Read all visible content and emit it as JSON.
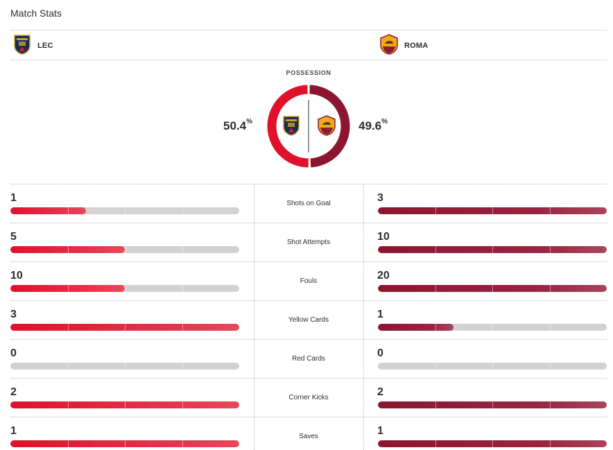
{
  "header": {
    "title": "Match Stats"
  },
  "teams": {
    "home": {
      "name": "LEC"
    },
    "away": {
      "name": "ROMA"
    }
  },
  "possession": {
    "label": "POSSESSION",
    "home_value": "50.4",
    "away_value": "49.6",
    "unit": "%",
    "home_fraction": 0.504,
    "away_fraction": 0.496
  },
  "colors": {
    "home": "#e0112b",
    "away": "#8c1530",
    "track": "#d2d2d2"
  },
  "stats": [
    {
      "label": "Shots on Goal",
      "home": "1",
      "away": "3",
      "home_fill": 0.33,
      "away_fill": 1.0
    },
    {
      "label": "Shot Attempts",
      "home": "5",
      "away": "10",
      "home_fill": 0.5,
      "away_fill": 1.0
    },
    {
      "label": "Fouls",
      "home": "10",
      "away": "20",
      "home_fill": 0.5,
      "away_fill": 1.0
    },
    {
      "label": "Yellow Cards",
      "home": "3",
      "away": "1",
      "home_fill": 1.0,
      "away_fill": 0.33
    },
    {
      "label": "Red Cards",
      "home": "0",
      "away": "0",
      "home_fill": 0,
      "away_fill": 0
    },
    {
      "label": "Corner Kicks",
      "home": "2",
      "away": "2",
      "home_fill": 1.0,
      "away_fill": 1.0
    },
    {
      "label": "Saves",
      "home": "1",
      "away": "1",
      "home_fill": 1.0,
      "away_fill": 1.0
    }
  ],
  "icons": {
    "home_logo": "lecce-crest-icon",
    "away_logo": "roma-crest-icon"
  }
}
